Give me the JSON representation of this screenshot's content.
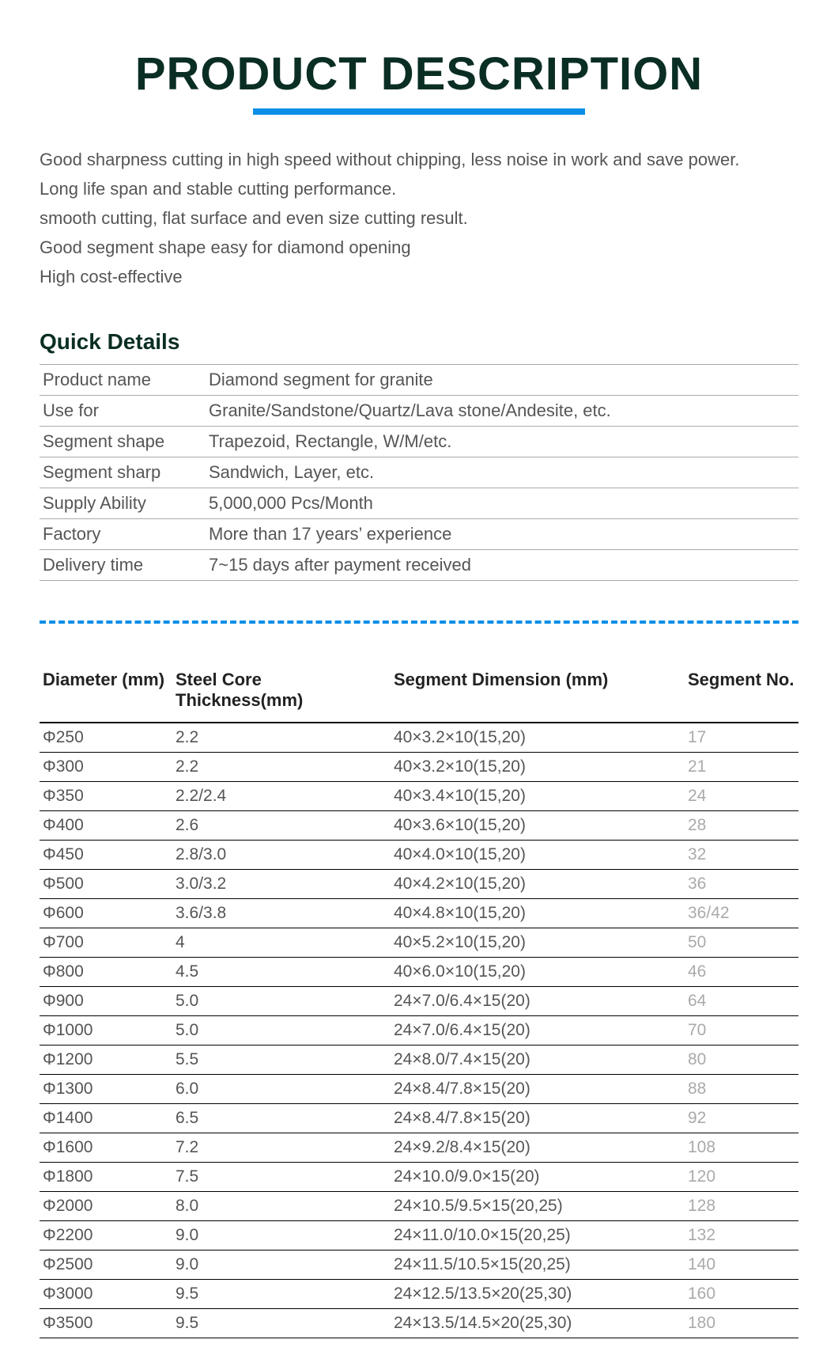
{
  "title": "PRODUCT DESCRIPTION",
  "features": [
    "Good sharpness cutting in high speed without chipping, less noise in work and save power.",
    "Long life span and stable cutting performance.",
    "smooth cutting, flat surface and even size cutting result.",
    "Good segment shape easy for diamond opening",
    "High cost-effective"
  ],
  "quick_details": {
    "heading": "Quick Details",
    "rows": [
      {
        "label": "Product name",
        "value": "Diamond segment for granite"
      },
      {
        "label": "Use for",
        "value": "Granite/Sandstone/Quartz/Lava stone/Andesite, etc."
      },
      {
        "label": "Segment shape",
        "value": "Trapezoid, Rectangle, W/M/etc."
      },
      {
        "label": "Segment sharp",
        "value": "Sandwich, Layer, etc."
      },
      {
        "label": "Supply Ability",
        "value": "5,000,000 Pcs/Month"
      },
      {
        "label": "Factory",
        "value": "More than 17 years’ experience"
      },
      {
        "label": "Delivery time",
        "value": "7~15 days after payment received"
      }
    ]
  },
  "spec_table": {
    "headers": {
      "diameter": "Diameter (mm)",
      "thickness": "Steel Core Thickness(mm)",
      "dimension": "Segment Dimension  (mm)",
      "segno": "Segment No."
    },
    "rows": [
      {
        "dia": "Φ250",
        "thick": "2.2",
        "dim": "40×3.2×10(15,20)",
        "segno": "17"
      },
      {
        "dia": "Φ300",
        "thick": "2.2",
        "dim": "40×3.2×10(15,20)",
        "segno": "21"
      },
      {
        "dia": "Φ350",
        "thick": "2.2/2.4",
        "dim": "40×3.4×10(15,20)",
        "segno": "24"
      },
      {
        "dia": "Φ400",
        "thick": "2.6",
        "dim": "40×3.6×10(15,20)",
        "segno": "28"
      },
      {
        "dia": "Φ450",
        "thick": "2.8/3.0",
        "dim": "40×4.0×10(15,20)",
        "segno": "32"
      },
      {
        "dia": "Φ500",
        "thick": "3.0/3.2",
        "dim": "40×4.2×10(15,20)",
        "segno": "36"
      },
      {
        "dia": "Φ600",
        "thick": "3.6/3.8",
        "dim": "40×4.8×10(15,20)",
        "segno": "36/42"
      },
      {
        "dia": "Φ700",
        "thick": "4",
        "dim": "40×5.2×10(15,20)",
        "segno": "50"
      },
      {
        "dia": "Φ800",
        "thick": "4.5",
        "dim": "40×6.0×10(15,20)",
        "segno": "46"
      },
      {
        "dia": "Φ900",
        "thick": "5.0",
        "dim": "24×7.0/6.4×15(20)",
        "segno": "64"
      },
      {
        "dia": "Φ1000",
        "thick": "5.0",
        "dim": "24×7.0/6.4×15(20)",
        "segno": "70"
      },
      {
        "dia": "Φ1200",
        "thick": "5.5",
        "dim": "24×8.0/7.4×15(20)",
        "segno": "80"
      },
      {
        "dia": "Φ1300",
        "thick": "6.0",
        "dim": "24×8.4/7.8×15(20)",
        "segno": "88"
      },
      {
        "dia": "Φ1400",
        "thick": "6.5",
        "dim": "24×8.4/7.8×15(20)",
        "segno": "92"
      },
      {
        "dia": "Φ1600",
        "thick": "7.2",
        "dim": "24×9.2/8.4×15(20)",
        "segno": "108"
      },
      {
        "dia": "Φ1800",
        "thick": "7.5",
        "dim": "24×10.0/9.0×15(20)",
        "segno": "120"
      },
      {
        "dia": "Φ2000",
        "thick": "8.0",
        "dim": "24×10.5/9.5×15(20,25)",
        "segno": "128"
      },
      {
        "dia": "Φ2200",
        "thick": "9.0",
        "dim": "24×11.0/10.0×15(20,25)",
        "segno": "132"
      },
      {
        "dia": "Φ2500",
        "thick": "9.0",
        "dim": "24×11.5/10.5×15(20,25)",
        "segno": "140"
      },
      {
        "dia": "Φ3000",
        "thick": "9.5",
        "dim": "24×12.5/13.5×20(25,30)",
        "segno": "160"
      },
      {
        "dia": "Φ3500",
        "thick": "9.5",
        "dim": "24×13.5/14.5×20(25,30)",
        "segno": "180"
      }
    ]
  },
  "colors": {
    "title_color": "#0a2e24",
    "underline_color": "#0a8ee8",
    "body_text": "#555555",
    "segno_color": "#aaaaaa",
    "border_color": "#000000"
  }
}
